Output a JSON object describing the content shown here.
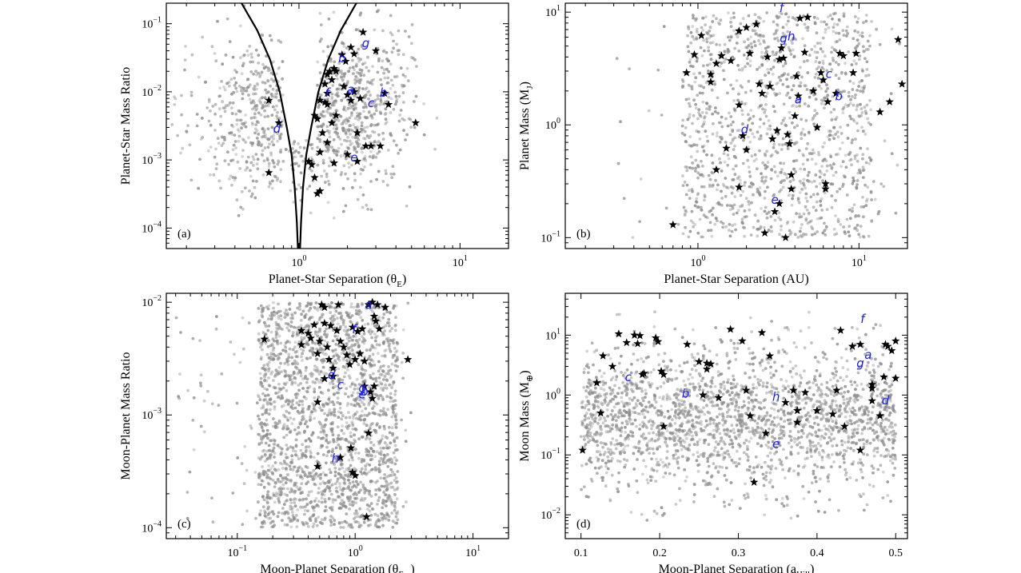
{
  "colors": {
    "background": "#ffffff",
    "simulated_points": "#8c8c8c",
    "detected_planets": "#000000",
    "annotation_labels": "#1a1aff",
    "curve": "#000000"
  },
  "icons": {
    "detection_marker": "star-icon"
  },
  "chart_data": [
    {
      "panel": "(a)",
      "type": "scatter",
      "xlabel": "Planet-Star Separation (θ",
      "xlabel_sub": "E",
      "xlabel_end": ")",
      "ylabel": "Planet-Star Mass Ratio",
      "xscale": "log",
      "yscale": "log",
      "xlim": [
        0.15,
        20
      ],
      "ylim": [
        5e-05,
        0.2
      ],
      "xticks": [
        {
          "v": 1,
          "label": "10",
          "exp": "0"
        },
        {
          "v": 10,
          "label": "10",
          "exp": "1"
        }
      ],
      "yticks": [
        {
          "v": 0.0001,
          "label": "10",
          "exp": "−4"
        },
        {
          "v": 0.001,
          "label": "10",
          "exp": "−3"
        },
        {
          "v": 0.01,
          "label": "10",
          "exp": "−2"
        },
        {
          "v": 0.1,
          "label": "10",
          "exp": "−1"
        }
      ],
      "simulated_cloud": {
        "x_center": 0.75,
        "x_spread": 0.55,
        "y_center": 0.004,
        "y_spread": 1.0,
        "count": 1400
      },
      "curve_pairs": [
        {
          "x": 0.44,
          "y": 0.2
        },
        {
          "x": 0.55,
          "y": 0.08
        },
        {
          "x": 0.66,
          "y": 0.03
        },
        {
          "x": 0.76,
          "y": 0.01
        },
        {
          "x": 0.84,
          "y": 0.003
        },
        {
          "x": 0.9,
          "y": 0.0012
        },
        {
          "x": 0.94,
          "y": 0.0004
        },
        {
          "x": 0.97,
          "y": 0.00012
        },
        {
          "x": 0.985,
          "y": 5e-05
        }
      ],
      "curve_pairs_right": [
        {
          "x": 2.27,
          "y": 0.2
        },
        {
          "x": 1.82,
          "y": 0.08
        },
        {
          "x": 1.52,
          "y": 0.03
        },
        {
          "x": 1.32,
          "y": 0.01
        },
        {
          "x": 1.19,
          "y": 0.003
        },
        {
          "x": 1.11,
          "y": 0.0012
        },
        {
          "x": 1.06,
          "y": 0.0004
        },
        {
          "x": 1.03,
          "y": 0.00012
        },
        {
          "x": 1.015,
          "y": 5e-05
        }
      ],
      "stars": [
        [
          0.65,
          0.0075
        ],
        [
          0.75,
          0.0035
        ],
        [
          0.65,
          0.00065
        ],
        [
          1.15,
          0.00095
        ],
        [
          1.35,
          0.00035
        ],
        [
          1.3,
          0.00032
        ],
        [
          1.25,
          0.00055
        ],
        [
          1.2,
          0.00085
        ],
        [
          1.35,
          0.0013
        ],
        [
          1.5,
          0.0018
        ],
        [
          1.4,
          0.0025
        ],
        [
          1.3,
          0.004
        ],
        [
          1.25,
          0.0045
        ],
        [
          1.35,
          0.0075
        ],
        [
          1.45,
          0.007
        ],
        [
          1.5,
          0.0065
        ],
        [
          1.6,
          0.0035
        ],
        [
          1.7,
          0.0045
        ],
        [
          1.5,
          0.0095
        ],
        [
          1.45,
          0.013
        ],
        [
          1.6,
          0.015
        ],
        [
          1.5,
          0.018
        ],
        [
          1.55,
          0.02
        ],
        [
          1.65,
          0.022
        ],
        [
          1.7,
          0.02
        ],
        [
          1.85,
          0.035
        ],
        [
          1.95,
          0.028
        ],
        [
          2.1,
          0.045
        ],
        [
          2.2,
          0.036
        ],
        [
          1.9,
          0.012
        ],
        [
          2.0,
          0.009
        ],
        [
          2.2,
          0.01
        ],
        [
          2.1,
          0.0075
        ],
        [
          2.3,
          0.0025
        ],
        [
          2.0,
          0.0012
        ],
        [
          2.3,
          0.00095
        ],
        [
          2.6,
          0.0016
        ],
        [
          2.8,
          0.0016
        ],
        [
          3.2,
          0.0016
        ],
        [
          3.4,
          0.0095
        ],
        [
          3.6,
          0.0065
        ],
        [
          2.5,
          0.075
        ],
        [
          3.0,
          0.04
        ],
        [
          2.4,
          0.008
        ],
        [
          5.3,
          0.0035
        ],
        [
          1.65,
          0.0009
        ]
      ],
      "labels": [
        {
          "text": "b",
          "x": 1.85,
          "y": 0.027
        },
        {
          "text": "g",
          "x": 2.6,
          "y": 0.045
        },
        {
          "text": "a",
          "x": 2.1,
          "y": 0.0095
        },
        {
          "text": "f",
          "x": 1.5,
          "y": 0.0085
        },
        {
          "text": "b",
          "x": 3.35,
          "y": 0.0085
        },
        {
          "text": "c",
          "x": 2.8,
          "y": 0.006
        },
        {
          "text": "d",
          "x": 0.73,
          "y": 0.0025
        },
        {
          "text": "e",
          "x": 2.2,
          "y": 0.00095
        }
      ]
    },
    {
      "panel": "(b)",
      "type": "scatter",
      "xlabel": "Planet-Star Separation (AU)",
      "ylabel": "Planet Mass (M",
      "ylabel_sub": "J",
      "ylabel_end": ")",
      "xscale": "log",
      "yscale": "log",
      "xlim": [
        0.15,
        20
      ],
      "ylim": [
        0.08,
        12
      ],
      "xticks": [
        {
          "v": 1,
          "label": "10",
          "exp": "0"
        },
        {
          "v": 10,
          "label": "10",
          "exp": "1"
        }
      ],
      "yticks": [
        {
          "v": 0.1,
          "label": "10",
          "exp": "−1"
        },
        {
          "v": 1,
          "label": "10",
          "exp": "0"
        },
        {
          "v": 10,
          "label": "10",
          "exp": "1"
        }
      ],
      "simulated_cloud": {
        "x_min": 0.8,
        "x_max": 12,
        "y_min": 0.1,
        "y_max": 10,
        "count": 1300
      },
      "stars": [
        [
          0.7,
          0.13
        ],
        [
          0.85,
          2.9
        ],
        [
          0.95,
          4.2
        ],
        [
          1.05,
          6.2
        ],
        [
          1.2,
          2.8
        ],
        [
          1.3,
          3.5
        ],
        [
          1.2,
          2.4
        ],
        [
          1.3,
          0.4
        ],
        [
          1.4,
          4.1
        ],
        [
          1.5,
          0.62
        ],
        [
          1.6,
          3.7
        ],
        [
          1.8,
          6.8
        ],
        [
          1.8,
          1.5
        ],
        [
          1.8,
          0.28
        ],
        [
          1.9,
          0.8
        ],
        [
          2.0,
          7.3
        ],
        [
          2.0,
          0.6
        ],
        [
          2.1,
          4.3
        ],
        [
          2.3,
          7.8
        ],
        [
          2.4,
          2.3
        ],
        [
          2.5,
          1.9
        ],
        [
          2.6,
          0.11
        ],
        [
          2.7,
          4.0
        ],
        [
          2.8,
          2.2
        ],
        [
          2.9,
          0.75
        ],
        [
          3.0,
          0.17
        ],
        [
          3.1,
          0.89
        ],
        [
          3.2,
          3.8
        ],
        [
          3.3,
          4.8
        ],
        [
          3.4,
          3.9
        ],
        [
          3.5,
          0.1
        ],
        [
          3.6,
          0.82
        ],
        [
          3.7,
          0.68
        ],
        [
          3.8,
          0.36
        ],
        [
          3.8,
          0.27
        ],
        [
          4.0,
          1.2
        ],
        [
          4.1,
          2.7
        ],
        [
          4.2,
          1.8
        ],
        [
          4.3,
          8.8
        ],
        [
          4.6,
          4.4
        ],
        [
          4.8,
          9.0
        ],
        [
          5.2,
          2.0
        ],
        [
          5.5,
          0.95
        ],
        [
          5.8,
          2.9
        ],
        [
          6.0,
          2.5
        ],
        [
          6.2,
          0.3
        ],
        [
          6.2,
          0.27
        ],
        [
          6.4,
          1.6
        ],
        [
          7.2,
          1.9
        ],
        [
          7.6,
          4.3
        ],
        [
          8.0,
          4.1
        ],
        [
          9.2,
          2.9
        ],
        [
          9.6,
          4.3
        ],
        [
          13.5,
          1.3
        ],
        [
          15.5,
          1.6
        ],
        [
          17.5,
          5.7
        ],
        [
          18.5,
          2.3
        ],
        [
          3.2,
          0.2
        ]
      ],
      "labels": [
        {
          "text": "f",
          "x": 3.3,
          "y": 10
        },
        {
          "text": "g",
          "x": 3.4,
          "y": 5.4
        },
        {
          "text": "h",
          "x": 3.8,
          "y": 5.6
        },
        {
          "text": "c",
          "x": 6.5,
          "y": 2.6
        },
        {
          "text": "a",
          "x": 4.2,
          "y": 1.55
        },
        {
          "text": "b",
          "x": 7.5,
          "y": 1.65
        },
        {
          "text": "d",
          "x": 1.95,
          "y": 0.84
        },
        {
          "text": "e",
          "x": 3.0,
          "y": 0.2
        }
      ]
    },
    {
      "panel": "(c)",
      "type": "scatter",
      "xlabel": "Moon-Planet Separation (θ",
      "xlabel_sub": "E,p",
      "xlabel_end": ")",
      "ylabel": "Moon-Planet Mass Ratio",
      "xscale": "log",
      "yscale": "log",
      "xlim": [
        0.025,
        20
      ],
      "ylim": [
        8e-05,
        0.012
      ],
      "xticks": [
        {
          "v": 0.1,
          "label": "10",
          "exp": "−1"
        },
        {
          "v": 1,
          "label": "10",
          "exp": "0"
        },
        {
          "v": 10,
          "label": "10",
          "exp": "1"
        }
      ],
      "yticks": [
        {
          "v": 0.0001,
          "label": "10",
          "exp": "−4"
        },
        {
          "v": 0.001,
          "label": "10",
          "exp": "−3"
        },
        {
          "v": 0.01,
          "label": "10",
          "exp": "−2"
        }
      ],
      "simulated_cloud": {
        "x_min": 0.15,
        "x_max": 2.3,
        "y_min": 0.0001,
        "y_max": 0.01,
        "count": 2200
      },
      "stars": [
        [
          0.17,
          0.0047
        ],
        [
          0.35,
          0.0056
        ],
        [
          0.35,
          0.0042
        ],
        [
          0.4,
          0.0053
        ],
        [
          0.42,
          0.0048
        ],
        [
          0.45,
          0.0063
        ],
        [
          0.48,
          0.0035
        ],
        [
          0.5,
          0.0045
        ],
        [
          0.52,
          0.0095
        ],
        [
          0.55,
          0.009
        ],
        [
          0.55,
          0.0065
        ],
        [
          0.58,
          0.004
        ],
        [
          0.6,
          0.0031
        ],
        [
          0.62,
          0.0062
        ],
        [
          0.65,
          0.0026
        ],
        [
          0.7,
          0.0056
        ],
        [
          0.72,
          0.0095
        ],
        [
          0.75,
          0.0045
        ],
        [
          0.8,
          0.004
        ],
        [
          0.85,
          0.0034
        ],
        [
          0.9,
          0.0028
        ],
        [
          0.95,
          0.006
        ],
        [
          1.0,
          0.0031
        ],
        [
          1.05,
          0.0055
        ],
        [
          1.1,
          0.0035
        ],
        [
          1.15,
          0.0058
        ],
        [
          1.2,
          0.003
        ],
        [
          1.3,
          0.0095
        ],
        [
          1.4,
          0.01
        ],
        [
          1.45,
          0.0075
        ],
        [
          1.5,
          0.0068
        ],
        [
          1.6,
          0.0058
        ],
        [
          1.55,
          0.0095
        ],
        [
          1.8,
          0.009
        ],
        [
          0.55,
          0.0021
        ],
        [
          0.65,
          0.0022
        ],
        [
          0.48,
          0.0013
        ],
        [
          1.4,
          0.0014
        ],
        [
          1.45,
          0.0018
        ],
        [
          1.35,
          0.0016
        ],
        [
          0.75,
          0.00042
        ],
        [
          0.48,
          0.00035
        ],
        [
          0.92,
          0.00051
        ],
        [
          0.95,
          0.00031
        ],
        [
          1.0,
          0.00029
        ],
        [
          1.3,
          0.00069
        ],
        [
          1.25,
          0.000125
        ],
        [
          2.8,
          0.0031
        ],
        [
          1.2,
          0.0018
        ]
      ],
      "labels": [
        {
          "text": "a",
          "x": 1.3,
          "y": 0.0087
        },
        {
          "text": "f",
          "x": 0.98,
          "y": 0.0053
        },
        {
          "text": "d",
          "x": 0.63,
          "y": 0.0021
        },
        {
          "text": "c",
          "x": 0.75,
          "y": 0.0017
        },
        {
          "text": "g",
          "x": 1.15,
          "y": 0.0016
        },
        {
          "text": "e",
          "x": 1.15,
          "y": 0.0014
        },
        {
          "text": "b",
          "x": 1.2,
          "y": 0.00148
        },
        {
          "text": "h",
          "x": 0.68,
          "y": 0.00038
        }
      ]
    },
    {
      "panel": "(d)",
      "type": "scatter",
      "xlabel": "Moon-Planet Separation (a",
      "xlabel_sub": "Hill",
      "xlabel_end": ")",
      "ylabel": "Moon Mass (M",
      "ylabel_sub": "⊕",
      "ylabel_end": ")",
      "xscale": "linear",
      "yscale": "log",
      "xlim": [
        0.08,
        0.515
      ],
      "ylim": [
        0.004,
        50
      ],
      "xticks": [
        {
          "v": 0.1,
          "label": "0.1"
        },
        {
          "v": 0.2,
          "label": "0.2"
        },
        {
          "v": 0.3,
          "label": "0.3"
        },
        {
          "v": 0.4,
          "label": "0.4"
        },
        {
          "v": 0.5,
          "label": "0.5"
        }
      ],
      "yticks": [
        {
          "v": 0.01,
          "label": "10",
          "exp": "−2"
        },
        {
          "v": 0.1,
          "label": "10",
          "exp": "−1"
        },
        {
          "v": 1,
          "label": "10",
          "exp": "0"
        },
        {
          "v": 10,
          "label": "10",
          "exp": "1"
        }
      ],
      "simulated_cloud": {
        "x_min": 0.1,
        "x_max": 0.5,
        "y_center": 0.4,
        "y_spread": 1.4,
        "y_min": 0.008,
        "y_max": 30,
        "count": 2200
      },
      "stars": [
        [
          0.102,
          0.12
        ],
        [
          0.12,
          1.6
        ],
        [
          0.125,
          0.5
        ],
        [
          0.128,
          4.5
        ],
        [
          0.14,
          3.0
        ],
        [
          0.148,
          10.5
        ],
        [
          0.158,
          7.5
        ],
        [
          0.168,
          10
        ],
        [
          0.172,
          7.2
        ],
        [
          0.175,
          9.8
        ],
        [
          0.178,
          2.2
        ],
        [
          0.18,
          2.3
        ],
        [
          0.195,
          9.0
        ],
        [
          0.198,
          7.8
        ],
        [
          0.202,
          2.5
        ],
        [
          0.205,
          2.2
        ],
        [
          0.205,
          0.3
        ],
        [
          0.235,
          7.0
        ],
        [
          0.25,
          3.6
        ],
        [
          0.255,
          1.0
        ],
        [
          0.26,
          3.4
        ],
        [
          0.26,
          2.7
        ],
        [
          0.265,
          3.3
        ],
        [
          0.275,
          0.9
        ],
        [
          0.29,
          12.5
        ],
        [
          0.305,
          8.0
        ],
        [
          0.31,
          1.2
        ],
        [
          0.315,
          0.45
        ],
        [
          0.32,
          0.035
        ],
        [
          0.33,
          11
        ],
        [
          0.335,
          0.23
        ],
        [
          0.34,
          4.5
        ],
        [
          0.36,
          0.75
        ],
        [
          0.37,
          1.2
        ],
        [
          0.375,
          0.35
        ],
        [
          0.375,
          0.55
        ],
        [
          0.385,
          1.1
        ],
        [
          0.4,
          0.55
        ],
        [
          0.42,
          0.48
        ],
        [
          0.425,
          1.2
        ],
        [
          0.43,
          12
        ],
        [
          0.435,
          0.3
        ],
        [
          0.445,
          6.5
        ],
        [
          0.455,
          7.0
        ],
        [
          0.455,
          0.12
        ],
        [
          0.47,
          1.5
        ],
        [
          0.47,
          1.3
        ],
        [
          0.48,
          0.45
        ],
        [
          0.485,
          2.0
        ],
        [
          0.49,
          6.5
        ],
        [
          0.495,
          5.5
        ],
        [
          0.5,
          8.0
        ],
        [
          0.5,
          1.9
        ],
        [
          0.47,
          0.8
        ],
        [
          0.487,
          7.0
        ]
      ],
      "labels": [
        {
          "text": "f",
          "x": 0.458,
          "y": 16
        },
        {
          "text": "a",
          "x": 0.465,
          "y": 4.0
        },
        {
          "text": "g",
          "x": 0.455,
          "y": 2.9
        },
        {
          "text": "c",
          "x": 0.16,
          "y": 1.7
        },
        {
          "text": "b",
          "x": 0.233,
          "y": 0.9
        },
        {
          "text": "h",
          "x": 0.348,
          "y": 0.8
        },
        {
          "text": "d",
          "x": 0.487,
          "y": 0.7
        },
        {
          "text": "e",
          "x": 0.348,
          "y": 0.13
        }
      ]
    }
  ]
}
